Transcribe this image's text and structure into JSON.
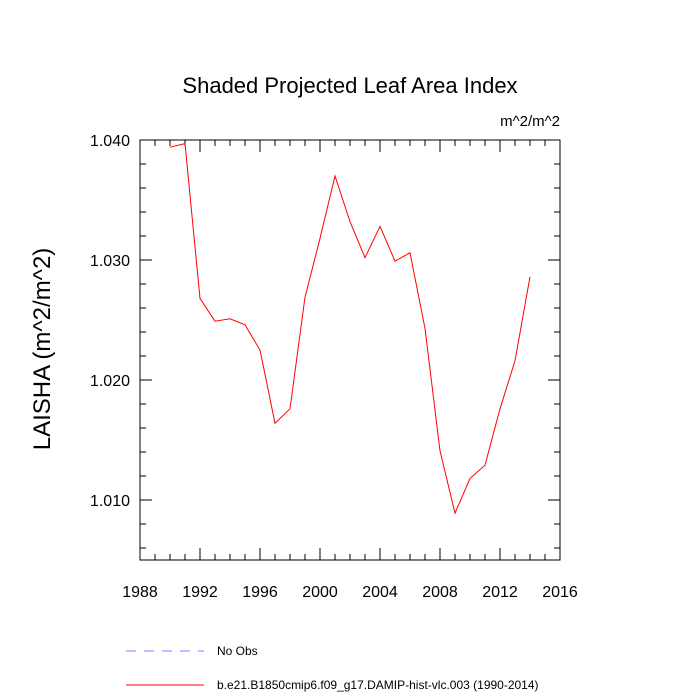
{
  "chart_data": {
    "type": "line",
    "title": "Shaded Projected Leaf Area Index",
    "units": "m^2/m^2",
    "xlabel": "",
    "ylabel": "LAISHA  (m^2/m^2)",
    "xlim": [
      1988,
      2016
    ],
    "ylim": [
      1.005,
      1.04
    ],
    "x_ticks": [
      1988,
      1992,
      1996,
      2000,
      2004,
      2008,
      2012,
      2016
    ],
    "x_tick_labels": [
      "1988",
      "1992",
      "1996",
      "2000",
      "2004",
      "2008",
      "2012",
      "2016"
    ],
    "y_ticks": [
      1.01,
      1.02,
      1.03,
      1.04
    ],
    "y_tick_labels": [
      "1.010",
      "1.020",
      "1.030",
      "1.040"
    ],
    "grid": false,
    "series": [
      {
        "name": "b.e21.B1850cmip6.f09_g17.DAMIP-hist-vlc.003 (1990-2014)",
        "color": "#ff0000",
        "style": "solid",
        "x": [
          1990,
          1991,
          1992,
          1993,
          1994,
          1995,
          1996,
          1997,
          1998,
          1999,
          2000,
          2001,
          2002,
          2003,
          2004,
          2005,
          2006,
          2007,
          2008,
          2009,
          2010,
          2011,
          2012,
          2013,
          2014
        ],
        "values": [
          1.0394,
          1.0397,
          1.0268,
          1.0249,
          1.0251,
          1.0246,
          1.0225,
          1.0164,
          1.0176,
          1.0269,
          1.0318,
          1.037,
          1.0332,
          1.0302,
          1.0328,
          1.0299,
          1.0306,
          1.0243,
          1.0141,
          1.0089,
          1.0118,
          1.0129,
          1.0176,
          1.0216,
          1.0286
        ]
      }
    ],
    "legend": [
      {
        "label": "No Obs",
        "color": "#7b7bff",
        "style": "dashed"
      },
      {
        "label": "b.e21.B1850cmip6.f09_g17.DAMIP-hist-vlc.003 (1990-2014)",
        "color": "#ff0000",
        "style": "solid"
      }
    ]
  }
}
